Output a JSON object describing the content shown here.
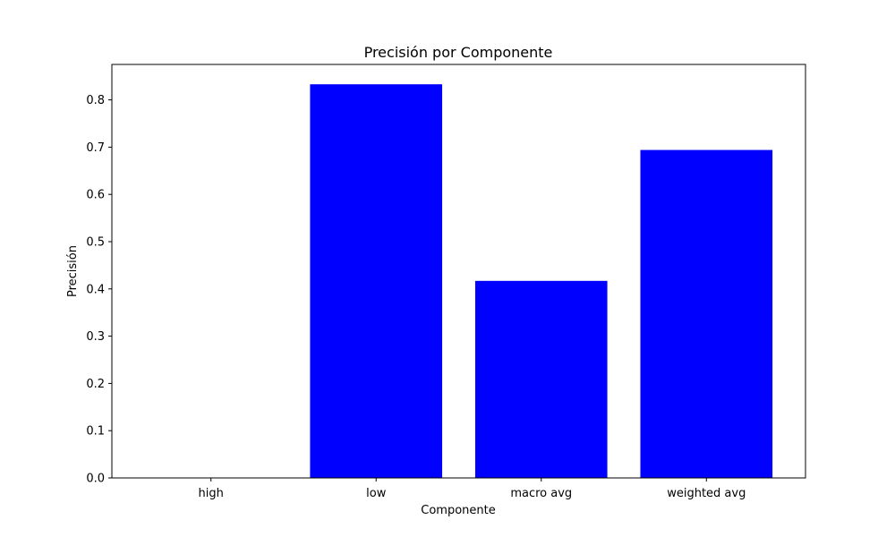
{
  "chart_data": {
    "type": "bar",
    "title": "Precisión por Componente",
    "xlabel": "Componente",
    "ylabel": "Precisión",
    "categories": [
      "high",
      "low",
      "macro avg",
      "weighted avg"
    ],
    "values": [
      0.0,
      0.833,
      0.417,
      0.694
    ],
    "ylim": [
      0,
      0.875
    ],
    "yticks": [
      0.0,
      0.1,
      0.2,
      0.3,
      0.4,
      0.5,
      0.6,
      0.7,
      0.8
    ],
    "ytick_labels": [
      "0.0",
      "0.1",
      "0.2",
      "0.3",
      "0.4",
      "0.5",
      "0.6",
      "0.7",
      "0.8"
    ],
    "bar_color": "#0000ff",
    "grid": false,
    "legend": "none"
  }
}
